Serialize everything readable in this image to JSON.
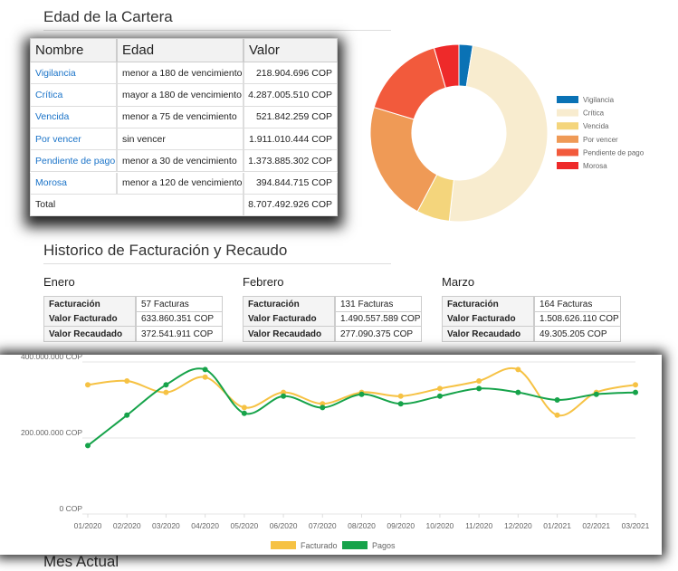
{
  "cartera": {
    "title": "Edad de la Cartera",
    "table": {
      "header": [
        "Nombre",
        "Edad",
        "Valor"
      ],
      "rows": [
        [
          "Vigilancia",
          "menor a 180 de vencimiento",
          "218.904.696 COP"
        ],
        [
          "Crítica",
          "mayor a 180 de vencimiento",
          "4.287.005.510 COP"
        ],
        [
          "Vencida",
          "menor a 75 de vencimiento",
          "521.842.259 COP"
        ],
        [
          "Por vencer",
          "sin vencer",
          "1.911.010.444 COP"
        ],
        [
          "Pendiente de pago",
          "menor a 30 de vencimiento",
          "1.373.885.302 COP"
        ],
        [
          "Morosa",
          "menor a 120 de vencimiento",
          "394.844.715 COP"
        ]
      ],
      "total": [
        "Total",
        "8.707.492.926 COP"
      ]
    }
  },
  "historico": {
    "title": "Historico de Facturación y Recaudo",
    "months": [
      {
        "title": "Enero",
        "rows": [
          [
            "Facturación",
            "57 Facturas"
          ],
          [
            "Valor Facturado",
            "633.860.351 COP"
          ],
          [
            "Valor Recaudado",
            "372.541.911 COP"
          ]
        ]
      },
      {
        "title": "Febrero",
        "rows": [
          [
            "Facturación",
            "131 Facturas"
          ],
          [
            "Valor Facturado",
            "1.490.557.589 COP"
          ],
          [
            "Valor Recaudado",
            "277.090.375 COP"
          ]
        ]
      },
      {
        "title": "Marzo",
        "rows": [
          [
            "Facturación",
            "164 Facturas"
          ],
          [
            "Valor Facturado",
            "1.508.626.110 COP"
          ],
          [
            "Valor Recaudado",
            "49.305.205 COP"
          ]
        ]
      }
    ]
  },
  "mes_actual": {
    "title": "Mes Actual"
  },
  "chart_data": [
    {
      "type": "donut",
      "categories": [
        "Vigilancia",
        "Crítica",
        "Vencida",
        "Por vencer",
        "Pendiente de pago",
        "Morosa"
      ],
      "values": [
        218904696,
        4287005510,
        521842259,
        1911010444,
        1373885302,
        394844715
      ],
      "colors": [
        "#0a72b5",
        "#f8eccf",
        "#f4d57c",
        "#ef9a56",
        "#f25a3c",
        "#ee2a2a"
      ]
    },
    {
      "type": "line",
      "categories": [
        "01/2020",
        "02/2020",
        "03/2020",
        "04/2020",
        "05/2020",
        "06/2020",
        "07/2020",
        "08/2020",
        "09/2020",
        "10/2020",
        "11/2020",
        "12/2020",
        "01/2021",
        "02/2021",
        "03/2021"
      ],
      "series": [
        {
          "name": "Facturado",
          "color": "#f6c244",
          "values": [
            340000000,
            350000000,
            320000000,
            360000000,
            280000000,
            320000000,
            290000000,
            320000000,
            310000000,
            330000000,
            350000000,
            380000000,
            260000000,
            320000000,
            340000000
          ]
        },
        {
          "name": "Pagos",
          "color": "#16a34a",
          "values": [
            180000000,
            260000000,
            340000000,
            380000000,
            265000000,
            310000000,
            280000000,
            315000000,
            290000000,
            310000000,
            330000000,
            320000000,
            300000000,
            315000000,
            320000000
          ]
        }
      ],
      "ylim": [
        0,
        400000000
      ],
      "yticks": [
        {
          "value": 0,
          "label": "0 COP"
        },
        {
          "value": 200000000,
          "label": "200.000.000 COP"
        },
        {
          "value": 400000000,
          "label": "400.000.000 COP"
        }
      ],
      "grid": true
    }
  ]
}
